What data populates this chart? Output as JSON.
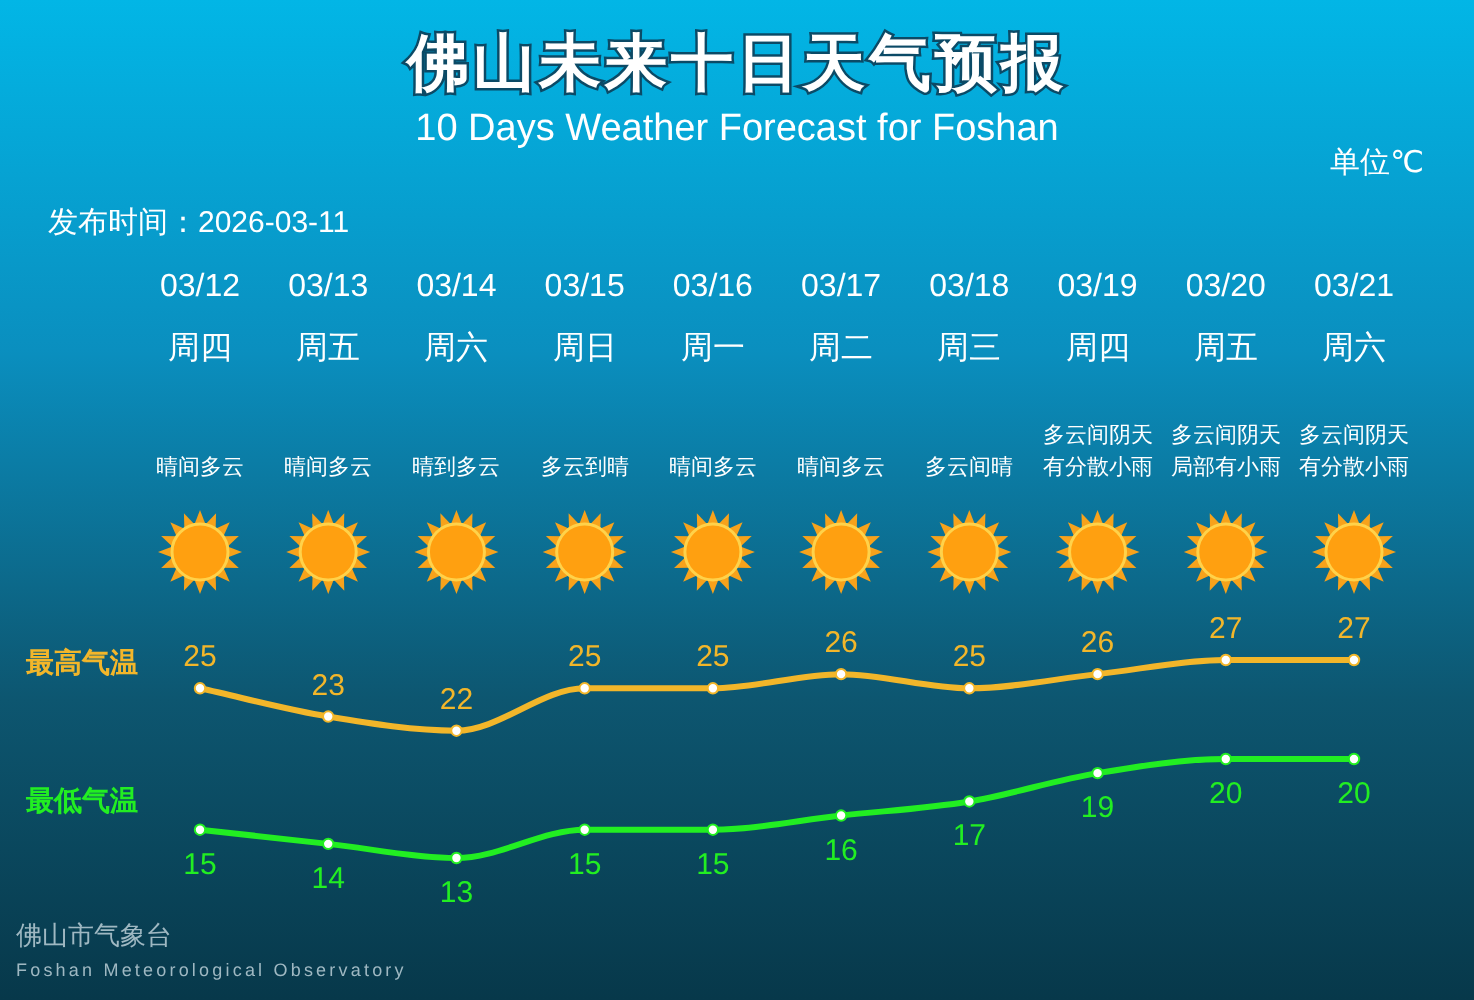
{
  "chart_data": {
    "type": "line",
    "title": "佛山未来十日天气预报",
    "subtitle": "10 Days Weather Forecast for Foshan",
    "categories": [
      "03/12\n周四",
      "03/13\n周五",
      "03/14\n周六",
      "03/15\n周日",
      "03/16\n周一",
      "03/17\n周二",
      "03/18\n周三",
      "03/19\n周四",
      "03/20\n周五",
      "03/21\n周六"
    ],
    "series": [
      {
        "name": "最高气温",
        "color": "#f2b62a",
        "values": [
          25,
          23,
          22,
          25,
          25,
          26,
          25,
          26,
          27,
          27
        ]
      },
      {
        "name": "最低气温",
        "color": "#22ee22",
        "values": [
          15,
          14,
          13,
          15,
          15,
          16,
          17,
          19,
          20,
          20
        ]
      }
    ],
    "data_labels": true,
    "marker": "circle",
    "annotations": [
      "晴间多云",
      "晴间多云",
      "晴到多云",
      "多云到晴",
      "晴间多云",
      "晴间多云",
      "多云间晴",
      "多云间阴天有分散小雨",
      "多云间阴天局部有小雨",
      "多云间阴天有分散小雨",
      "单位℃",
      "发布时间：2026-03-11",
      "佛山市气象台",
      "Foshan Meteorological Observatory"
    ]
  }
}
